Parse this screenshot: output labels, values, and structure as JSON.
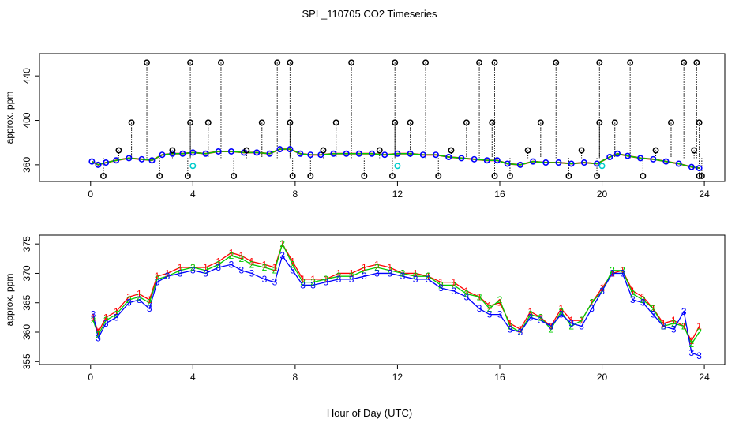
{
  "title": "SPL_110705  CO2 Timeseries",
  "xlabel": "Hour of Day (UTC)",
  "colors": {
    "series1": "#ff0000",
    "series2": "#00cc00",
    "series3": "#0000ff",
    "flag_black": "#000000",
    "flag_cyan": "#00cccc",
    "axis": "#000000"
  },
  "chart_data": [
    {
      "type": "scatter",
      "panel": "top",
      "ylabel": "approx. ppm",
      "xlim": [
        -2,
        24.8
      ],
      "ylim": [
        345,
        460
      ],
      "x_ticks": [
        0,
        4,
        8,
        12,
        16,
        20,
        24
      ],
      "y_ticks": [
        360,
        400,
        440
      ],
      "series": [
        {
          "x": [
            0.05,
            0.3,
            0.6,
            1.0,
            1.5,
            2.0,
            2.4,
            2.8,
            3.2,
            3.6,
            4.0,
            4.5,
            5.0,
            5.5,
            6.0,
            6.5,
            7.0,
            7.4,
            7.8,
            8.2,
            8.6,
            9.0,
            9.5,
            10.0,
            10.5,
            11.0,
            11.5,
            12.0,
            12.5,
            13.0,
            13.5,
            14.0,
            14.5,
            15.0,
            15.5,
            15.9,
            16.3,
            16.8,
            17.3,
            17.8,
            18.3,
            18.8,
            19.3,
            19.8,
            20.3,
            20.6,
            21.0,
            21.5,
            22.0,
            22.5,
            23.0,
            23.5,
            23.8
          ],
          "y": [
            363,
            360,
            362,
            364,
            366,
            365,
            364,
            369,
            370,
            370,
            371,
            370,
            372,
            372,
            371,
            371,
            370,
            374,
            374,
            370,
            369,
            369,
            370,
            370,
            370,
            370,
            369,
            370,
            370,
            369,
            369,
            367,
            366,
            365,
            364,
            364,
            361,
            360,
            363,
            362,
            362,
            361,
            362,
            361,
            367,
            370,
            368,
            366,
            365,
            363,
            361,
            358,
            357
          ]
        }
      ],
      "flag_points": {
        "black_x": [
          0.5,
          1.1,
          1.6,
          2.2,
          2.7,
          3.2,
          3.8,
          3.9,
          3.9,
          4.6,
          5.1,
          5.6,
          6.1,
          6.7,
          7.3,
          7.8,
          7.8,
          7.9,
          8.6,
          9.1,
          9.6,
          10.2,
          10.7,
          11.3,
          11.8,
          11.9,
          11.9,
          12.5,
          13.1,
          13.6,
          14.1,
          14.7,
          15.2,
          15.7,
          15.8,
          15.8,
          16.4,
          17.1,
          17.6,
          18.2,
          18.7,
          19.2,
          19.8,
          19.9,
          19.9,
          20.5,
          21.1,
          21.6,
          22.1,
          22.7,
          23.2,
          23.6,
          23.7,
          23.8,
          23.8,
          23.9
        ],
        "black_y": [
          350,
          373,
          398,
          452,
          350,
          373,
          350,
          398,
          452,
          398,
          452,
          350,
          373,
          398,
          452,
          398,
          452,
          350,
          350,
          373,
          398,
          452,
          350,
          373,
          350,
          398,
          452,
          398,
          452,
          350,
          373,
          398,
          452,
          398,
          452,
          350,
          350,
          373,
          398,
          452,
          350,
          373,
          350,
          398,
          452,
          398,
          452,
          350,
          373,
          398,
          452,
          373,
          452,
          398,
          350,
          350
        ],
        "cyan_x": [
          4.0,
          12.0,
          20.0
        ],
        "cyan_y": [
          359,
          359,
          359
        ]
      }
    },
    {
      "type": "scatter",
      "panel": "bottom",
      "ylabel": "approx. ppm",
      "xlim": [
        -2,
        24.8
      ],
      "ylim": [
        354.5,
        376.5
      ],
      "x_ticks": [
        0,
        4,
        8,
        12,
        16,
        20,
        24
      ],
      "y_ticks": [
        355,
        360,
        365,
        370,
        375
      ],
      "series": [
        {
          "marker": "1",
          "x": [
            0.1,
            0.3,
            0.6,
            1.0,
            1.5,
            1.9,
            2.3,
            2.6,
            3.0,
            3.5,
            4.0,
            4.5,
            5.0,
            5.5,
            5.9,
            6.3,
            6.8,
            7.2,
            7.5,
            7.9,
            8.3,
            8.7,
            9.2,
            9.7,
            10.2,
            10.7,
            11.2,
            11.7,
            12.2,
            12.7,
            13.2,
            13.7,
            14.2,
            14.7,
            15.2,
            15.6,
            16.0,
            16.4,
            16.8,
            17.2,
            17.6,
            18.0,
            18.4,
            18.8,
            19.2,
            19.6,
            20.0,
            20.4,
            20.8,
            21.2,
            21.6,
            22.0,
            22.4,
            22.8,
            23.2,
            23.5,
            23.8
          ],
          "y": [
            362.5,
            360.0,
            362.5,
            363.5,
            366.0,
            366.5,
            365.5,
            369.5,
            370.0,
            371.0,
            371.0,
            371.0,
            372.0,
            373.5,
            373.0,
            372.0,
            371.5,
            371.0,
            375.0,
            372.0,
            369.0,
            369.0,
            369.0,
            370.0,
            370.0,
            371.0,
            371.5,
            371.0,
            370.0,
            370.0,
            369.5,
            368.5,
            368.5,
            367.0,
            366.0,
            364.5,
            365.0,
            361.5,
            360.5,
            363.5,
            362.5,
            361.0,
            364.0,
            362.0,
            362.0,
            365.0,
            367.5,
            370.0,
            370.5,
            367.0,
            366.0,
            364.0,
            361.5,
            362.0,
            361.0,
            358.5,
            361.0
          ]
        },
        {
          "marker": "2",
          "x": [
            0.1,
            0.3,
            0.6,
            1.0,
            1.5,
            1.9,
            2.3,
            2.6,
            3.0,
            3.5,
            4.0,
            4.5,
            5.0,
            5.5,
            5.9,
            6.3,
            6.8,
            7.2,
            7.5,
            7.9,
            8.3,
            8.7,
            9.2,
            9.7,
            10.2,
            10.7,
            11.2,
            11.7,
            12.2,
            12.7,
            13.2,
            13.7,
            14.2,
            14.7,
            15.2,
            15.6,
            16.0,
            16.4,
            16.8,
            17.2,
            17.6,
            18.0,
            18.4,
            18.8,
            19.2,
            19.6,
            20.0,
            20.4,
            20.8,
            21.2,
            21.6,
            22.0,
            22.4,
            22.8,
            23.2,
            23.5,
            23.8
          ],
          "y": [
            362.0,
            359.5,
            362.0,
            363.0,
            365.5,
            366.0,
            365.0,
            369.0,
            369.5,
            370.5,
            371.0,
            370.5,
            371.5,
            373.0,
            372.5,
            371.5,
            371.0,
            370.5,
            375.0,
            371.5,
            368.5,
            368.5,
            369.0,
            369.5,
            369.5,
            370.5,
            371.0,
            370.5,
            370.0,
            369.5,
            369.5,
            368.0,
            368.0,
            366.5,
            366.0,
            364.0,
            365.5,
            361.0,
            360.0,
            363.0,
            362.5,
            360.5,
            363.5,
            361.0,
            362.0,
            365.0,
            367.0,
            370.5,
            370.5,
            366.5,
            365.5,
            364.0,
            361.0,
            361.5,
            361.0,
            358.0,
            360.0
          ]
        },
        {
          "marker": "3",
          "x": [
            0.1,
            0.3,
            0.6,
            1.0,
            1.5,
            1.9,
            2.3,
            2.6,
            3.0,
            3.5,
            4.0,
            4.5,
            5.0,
            5.5,
            5.9,
            6.3,
            6.8,
            7.2,
            7.5,
            7.9,
            8.3,
            8.7,
            9.2,
            9.7,
            10.2,
            10.7,
            11.2,
            11.7,
            12.2,
            12.7,
            13.2,
            13.7,
            14.2,
            14.7,
            15.2,
            15.6,
            16.0,
            16.4,
            16.8,
            17.2,
            17.6,
            18.0,
            18.4,
            18.8,
            19.2,
            19.6,
            20.0,
            20.4,
            20.8,
            21.2,
            21.6,
            22.0,
            22.4,
            22.8,
            23.2,
            23.5,
            23.8
          ],
          "y": [
            363.0,
            359.0,
            361.5,
            362.5,
            365.0,
            365.5,
            364.0,
            368.5,
            369.5,
            370.0,
            370.5,
            370.0,
            371.0,
            371.5,
            370.5,
            370.0,
            369.0,
            368.5,
            373.0,
            370.5,
            368.0,
            368.0,
            368.5,
            369.0,
            369.0,
            369.5,
            370.0,
            370.0,
            369.5,
            369.0,
            369.0,
            367.5,
            367.0,
            366.0,
            364.0,
            363.0,
            363.0,
            360.5,
            360.0,
            362.5,
            362.0,
            361.0,
            363.0,
            361.5,
            361.0,
            364.0,
            367.0,
            370.0,
            370.0,
            365.5,
            365.0,
            363.0,
            361.0,
            360.5,
            363.5,
            356.5,
            356.0
          ]
        }
      ]
    }
  ]
}
